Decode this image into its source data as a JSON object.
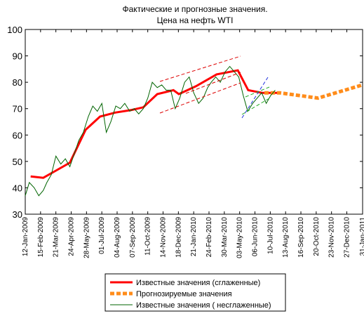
{
  "chart_data": {
    "type": "line",
    "title": "Фактические и прогнозные значения.",
    "subtitle": "Цена на нефть WTI",
    "xlim": [
      "2009-01-12",
      "2011-01-31"
    ],
    "xticks": [
      {
        "value": "2009-01-12",
        "label": "12-Jan-2009"
      },
      {
        "value": "2009-02-15",
        "label": "15-Feb-2009"
      },
      {
        "value": "2009-03-21",
        "label": "21-Mar-2009"
      },
      {
        "value": "2009-04-24",
        "label": "24-Apr-2009"
      },
      {
        "value": "2009-05-28",
        "label": "28-May-2009"
      },
      {
        "value": "2009-07-01",
        "label": "01-Jul-2009"
      },
      {
        "value": "2009-08-04",
        "label": "04-Aug-2009"
      },
      {
        "value": "2009-09-07",
        "label": "07-Sep-2009"
      },
      {
        "value": "2009-10-11",
        "label": "11-Oct-2009"
      },
      {
        "value": "2009-11-14",
        "label": "14-Nov-2009"
      },
      {
        "value": "2009-12-18",
        "label": "18-Dec-2009"
      },
      {
        "value": "2010-01-21",
        "label": "21-Jan-2010"
      },
      {
        "value": "2010-02-24",
        "label": "24-Feb-2010"
      },
      {
        "value": "2010-03-30",
        "label": "30-Mar-2010"
      },
      {
        "value": "2010-05-03",
        "label": "03-May-2010"
      },
      {
        "value": "2010-06-06",
        "label": "06-Jun-2010"
      },
      {
        "value": "2010-07-10",
        "label": "10-Jul-2010"
      },
      {
        "value": "2010-08-13",
        "label": "13-Aug-2010"
      },
      {
        "value": "2010-09-16",
        "label": "16-Sep-2010"
      },
      {
        "value": "2010-10-20",
        "label": "20-Oct-2010"
      },
      {
        "value": "2010-11-23",
        "label": "23-Nov-2010"
      },
      {
        "value": "2010-12-27",
        "label": "27-Dec-2010"
      },
      {
        "value": "2011-01-31",
        "label": "31-Jan-2011"
      }
    ],
    "ylim": [
      30,
      100
    ],
    "yticks": [
      30,
      40,
      50,
      60,
      70,
      80,
      90,
      100
    ],
    "series": [
      {
        "name": "Известные значения (сглаженные)",
        "color": "#ff0000",
        "dashed": false,
        "x": [
          "2009-01-24",
          "2009-02-21",
          "2009-03-21",
          "2009-04-21",
          "2009-05-26",
          "2009-06-27",
          "2009-07-31",
          "2009-09-05",
          "2009-10-01",
          "2009-11-01",
          "2009-12-07",
          "2009-12-19",
          "2010-01-26",
          "2010-03-13",
          "2010-04-29",
          "2010-05-22",
          "2010-06-22",
          "2010-07-28"
        ],
        "values": [
          44.3,
          43.8,
          46.5,
          49.5,
          62,
          67,
          68.5,
          69.5,
          70.5,
          75.5,
          77,
          75.5,
          78.5,
          83,
          84.5,
          77,
          76,
          76
        ]
      },
      {
        "name": "Прогнозируемые значения",
        "color": "#ff8c1a",
        "dashed": true,
        "x": [
          "2010-06-27",
          "2010-07-31",
          "2010-10-24",
          "2011-01-31"
        ],
        "values": [
          76,
          76,
          74,
          79
        ]
      },
      {
        "name": "Известные значения ( несглаженные)",
        "color": "#006400",
        "dashed": false,
        "x": [
          "2009-01-12",
          "2009-01-21",
          "2009-02-01",
          "2009-02-11",
          "2009-02-21",
          "2009-03-01",
          "2009-03-11",
          "2009-03-21",
          "2009-04-01",
          "2009-04-11",
          "2009-04-21",
          "2009-05-01",
          "2009-05-11",
          "2009-05-21",
          "2009-06-01",
          "2009-06-11",
          "2009-06-21",
          "2009-07-01",
          "2009-07-11",
          "2009-07-21",
          "2009-08-01",
          "2009-08-11",
          "2009-08-21",
          "2009-09-01",
          "2009-09-11",
          "2009-09-21",
          "2009-10-01",
          "2009-10-11",
          "2009-10-21",
          "2009-11-01",
          "2009-11-11",
          "2009-11-21",
          "2009-12-01",
          "2009-12-11",
          "2009-12-21",
          "2010-01-01",
          "2010-01-11",
          "2010-01-21",
          "2010-02-01",
          "2010-02-11",
          "2010-02-21",
          "2010-03-01",
          "2010-03-11",
          "2010-03-21",
          "2010-04-01",
          "2010-04-11",
          "2010-04-21",
          "2010-05-01",
          "2010-05-11",
          "2010-05-21",
          "2010-06-01",
          "2010-06-11",
          "2010-06-21",
          "2010-07-01",
          "2010-07-11",
          "2010-07-21"
        ],
        "values": [
          37,
          42,
          40,
          37,
          39,
          42,
          45,
          52,
          49,
          51,
          48,
          53,
          58,
          61,
          67,
          71,
          69,
          72,
          61,
          65,
          71,
          70,
          72,
          69,
          70,
          68,
          70,
          74,
          80,
          78,
          79,
          77,
          77,
          70,
          74,
          80,
          82,
          76,
          72,
          74,
          78,
          80,
          82,
          80,
          84,
          86,
          84,
          82,
          75,
          69,
          72,
          74,
          76,
          72,
          75,
          77
        ]
      }
    ]
  }
}
